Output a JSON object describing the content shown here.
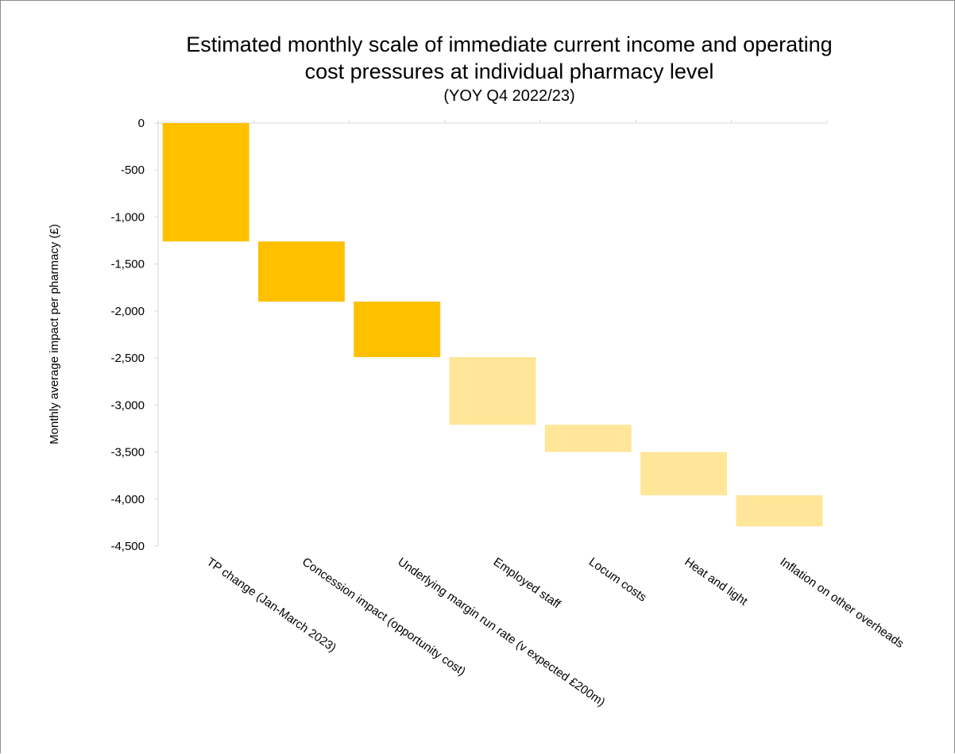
{
  "chart_data": {
    "type": "bar",
    "subtype": "waterfall",
    "title_lines": [
      "Estimated monthly scale of immediate current income and operating",
      "cost pressures at individual pharmacy level"
    ],
    "subtitle": "(YOY Q4 2022/23)",
    "xlabel": "",
    "ylabel": "Monthly average impact  per pharmacy (£)",
    "ylim": [
      -4500,
      0
    ],
    "yticks": [
      0,
      -500,
      -1000,
      -1500,
      -2000,
      -2500,
      -3000,
      -3500,
      -4000,
      -4500
    ],
    "ytick_labels": [
      "0",
      "-500",
      "-1,000",
      "-1,500",
      "-2,000",
      "-2,500",
      "-3,000",
      "-3,500",
      "-4,000",
      "-4,500"
    ],
    "grid": false,
    "categories": [
      "TP change (Jan-March 2023)",
      "Concession impact (opportunity cost)",
      "Underlying margin run rate (v expected £200m)",
      "Employed staff",
      "Locum costs",
      "Heat and light",
      "Inflation on other overheads"
    ],
    "values": [
      -1260,
      -640,
      -590,
      -720,
      -290,
      -460,
      -330
    ],
    "colors": [
      "#ffc000",
      "#ffc000",
      "#ffc000",
      "#ffe699",
      "#ffe699",
      "#ffe699",
      "#ffe699"
    ]
  }
}
